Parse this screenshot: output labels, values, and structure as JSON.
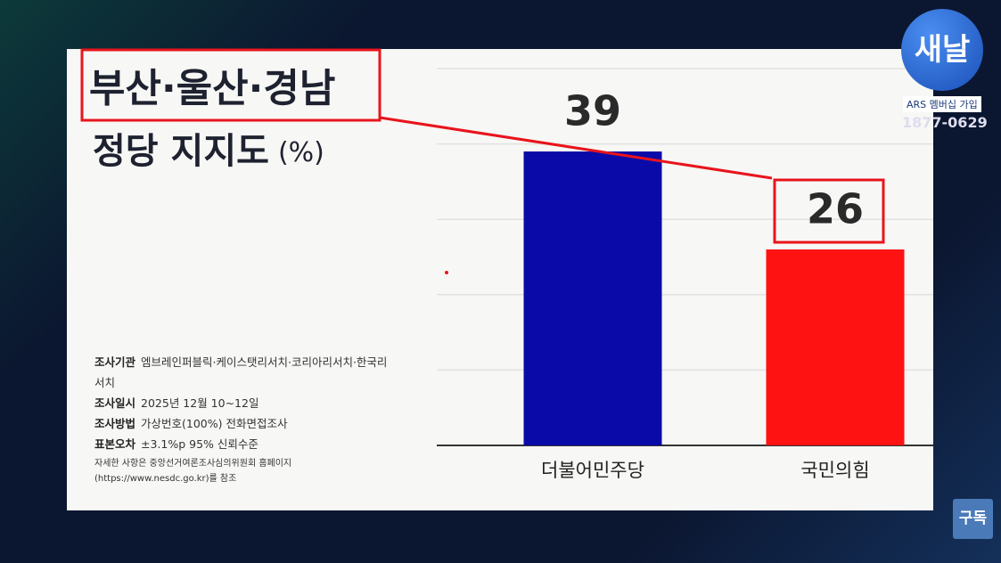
{
  "chart_data": {
    "type": "bar",
    "title": "부산·울산·경남",
    "subtitle": "정당 지지도",
    "unit": "(%)",
    "categories": [
      "더불어민주당",
      "국민의힘"
    ],
    "values": [
      39,
      26
    ],
    "colors": [
      "#0a0aa8",
      "#ff1212"
    ],
    "ylim": [
      0,
      50
    ],
    "yticks": [
      0,
      10,
      20,
      30,
      40,
      50
    ],
    "grid": true
  },
  "notes": [
    {
      "label": "조사기관",
      "text": "엠브레인퍼블릭·케이스탯리서치·코리아리서치·한국리서치"
    },
    {
      "label": "조사일시",
      "text": "2025년 12월 10~12일"
    },
    {
      "label": "조사방법",
      "text": "가상번호(100%) 전화면접조사"
    },
    {
      "label": "표본오차",
      "text": "±3.1%p 95% 신뢰수준"
    }
  ],
  "footnote": "자세한 사항은 중앙선거여론조사심의위원회 홈페이지 (https://www.nesdc.go.kr)를 참조",
  "logo": {
    "name": "새날",
    "badge": "ARS 멤버십 가입",
    "phone": "1877-0629"
  },
  "subscribe": "구독"
}
